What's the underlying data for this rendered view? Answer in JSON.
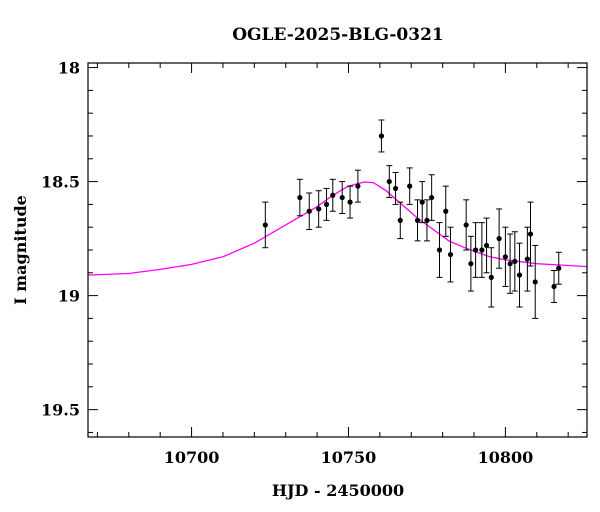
{
  "chart_data": {
    "type": "scatter",
    "title": "OGLE-2025-BLG-0321",
    "xlabel": "HJD - 2450000",
    "ylabel": "I magnitude",
    "xlim": [
      10667,
      10826
    ],
    "ylim": [
      19.62,
      17.98
    ],
    "y_inverted": true,
    "x_ticks": [
      10700,
      10750,
      10800
    ],
    "x_tick_labels": [
      "10700",
      "10750",
      "10800"
    ],
    "y_ticks": [
      18,
      18.5,
      19,
      19.5
    ],
    "y_tick_labels": [
      "18",
      "18.5",
      "19",
      "19.5"
    ],
    "grid": false,
    "colors": {
      "points": "#000000",
      "model": "#ff00ff",
      "frame": "#000000"
    },
    "series": [
      {
        "type": "errorbar",
        "points": [
          {
            "x": 10723.5,
            "y": 18.69,
            "err": 0.1
          },
          {
            "x": 10734.5,
            "y": 18.57,
            "err": 0.08
          },
          {
            "x": 10737.5,
            "y": 18.63,
            "err": 0.08
          },
          {
            "x": 10740.5,
            "y": 18.62,
            "err": 0.08
          },
          {
            "x": 10743.0,
            "y": 18.6,
            "err": 0.07
          },
          {
            "x": 10745.0,
            "y": 18.56,
            "err": 0.07
          },
          {
            "x": 10748.0,
            "y": 18.57,
            "err": 0.07
          },
          {
            "x": 10750.5,
            "y": 18.59,
            "err": 0.07
          },
          {
            "x": 10753.0,
            "y": 18.52,
            "err": 0.07
          },
          {
            "x": 10760.5,
            "y": 18.3,
            "err": 0.07
          },
          {
            "x": 10763.0,
            "y": 18.5,
            "err": 0.07
          },
          {
            "x": 10765.0,
            "y": 18.53,
            "err": 0.07
          },
          {
            "x": 10766.5,
            "y": 18.67,
            "err": 0.08
          },
          {
            "x": 10769.5,
            "y": 18.52,
            "err": 0.08
          },
          {
            "x": 10772.0,
            "y": 18.67,
            "err": 0.09
          },
          {
            "x": 10773.5,
            "y": 18.59,
            "err": 0.09
          },
          {
            "x": 10775.0,
            "y": 18.67,
            "err": 0.09
          },
          {
            "x": 10776.5,
            "y": 18.57,
            "err": 0.1
          },
          {
            "x": 10779.0,
            "y": 18.8,
            "err": 0.12
          },
          {
            "x": 10781.0,
            "y": 18.63,
            "err": 0.11
          },
          {
            "x": 10782.5,
            "y": 18.82,
            "err": 0.12
          },
          {
            "x": 10787.5,
            "y": 18.69,
            "err": 0.11
          },
          {
            "x": 10789.0,
            "y": 18.86,
            "err": 0.12
          },
          {
            "x": 10790.5,
            "y": 18.8,
            "err": 0.12
          },
          {
            "x": 10792.5,
            "y": 18.8,
            "err": 0.12
          },
          {
            "x": 10794.0,
            "y": 18.78,
            "err": 0.12
          },
          {
            "x": 10795.5,
            "y": 18.92,
            "err": 0.13
          },
          {
            "x": 10798.0,
            "y": 18.75,
            "err": 0.13
          },
          {
            "x": 10800.0,
            "y": 18.83,
            "err": 0.13
          },
          {
            "x": 10801.5,
            "y": 18.86,
            "err": 0.13
          },
          {
            "x": 10803.0,
            "y": 18.85,
            "err": 0.13
          },
          {
            "x": 10804.5,
            "y": 18.91,
            "err": 0.14
          },
          {
            "x": 10807.0,
            "y": 18.84,
            "err": 0.14
          },
          {
            "x": 10808.0,
            "y": 18.73,
            "err": 0.14
          },
          {
            "x": 10809.5,
            "y": 18.94,
            "err": 0.16
          },
          {
            "x": 10815.5,
            "y": 18.96,
            "err": 0.07
          },
          {
            "x": 10817.0,
            "y": 18.88,
            "err": 0.07
          }
        ]
      },
      {
        "type": "line",
        "points": [
          [
            10667,
            18.91
          ],
          [
            10680,
            18.903
          ],
          [
            10690,
            18.885
          ],
          [
            10700,
            18.863
          ],
          [
            10710,
            18.83
          ],
          [
            10720,
            18.77
          ],
          [
            10730,
            18.69
          ],
          [
            10740,
            18.61
          ],
          [
            10745,
            18.56
          ],
          [
            10750,
            18.52
          ],
          [
            10755,
            18.502
          ],
          [
            10758,
            18.505
          ],
          [
            10762,
            18.54
          ],
          [
            10767,
            18.6
          ],
          [
            10772,
            18.66
          ],
          [
            10777,
            18.71
          ],
          [
            10782,
            18.76
          ],
          [
            10787,
            18.79
          ],
          [
            10795,
            18.83
          ],
          [
            10800,
            18.843
          ],
          [
            10810,
            18.86
          ],
          [
            10820,
            18.868
          ],
          [
            10826,
            18.873
          ]
        ]
      }
    ]
  }
}
